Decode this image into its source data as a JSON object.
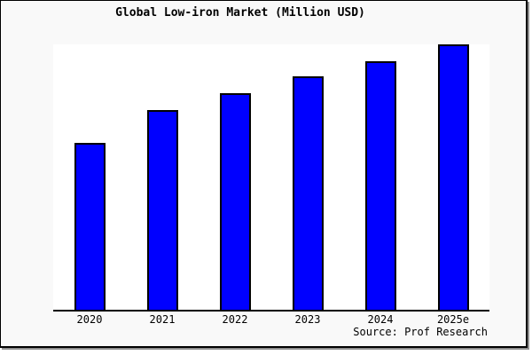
{
  "window": {
    "canvas_bg": "#f9f9f9",
    "page_bg": "#ffffff",
    "frame_border_color": "#000000",
    "frame_shadow_color": "#8f8f8f"
  },
  "chart_data": {
    "type": "bar",
    "title": "Global Low-iron Market (Million USD)",
    "categories": [
      "2020",
      "2021",
      "2022",
      "2023",
      "2024",
      "2025e"
    ],
    "values": [
      62.8,
      75.2,
      81.7,
      87.8,
      93.8,
      100
    ],
    "values_note": "y-axis has no ticks or labels; values are relative bar heights with the 2025e bar = 100",
    "xlabel": "",
    "ylabel": "",
    "ylim": [
      0,
      100
    ],
    "grid": false,
    "legend": "none",
    "bar_color": "#0000ff",
    "bar_border_color": "#000000",
    "plot_bg": "#ffffff",
    "axis_line_color": "#000000",
    "source": "Source: Prof Research"
  }
}
